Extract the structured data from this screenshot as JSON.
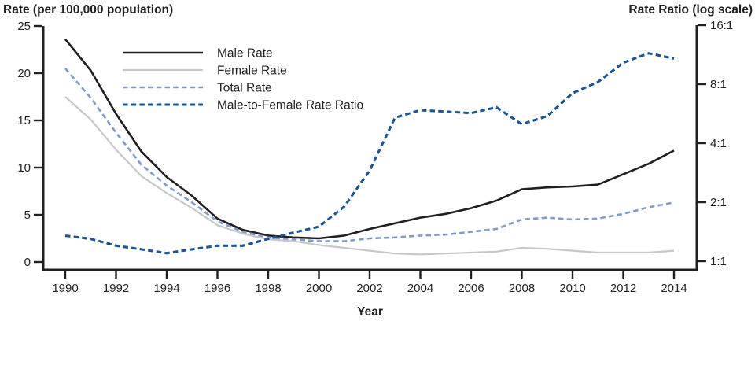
{
  "chart_data": {
    "type": "line",
    "title": "",
    "x_axis": {
      "title": "Year",
      "range": [
        1990,
        2014
      ],
      "ticks": [
        1990,
        1992,
        1994,
        1996,
        1998,
        2000,
        2002,
        2004,
        2006,
        2008,
        2010,
        2012,
        2014
      ]
    },
    "left_axis": {
      "title": "Rate (per 100,000 population)",
      "range": [
        0,
        25
      ],
      "ticks": [
        0,
        5,
        10,
        15,
        20,
        25
      ]
    },
    "right_axis": {
      "title": "Rate Ratio (log scale)",
      "scale": "log2",
      "range": [
        1,
        16
      ],
      "tick_values": [
        1,
        2,
        4,
        8,
        16
      ],
      "tick_labels": [
        "1:1",
        "2:1",
        "4:1",
        "8:1",
        "16:1"
      ]
    },
    "x": [
      1990,
      1991,
      1992,
      1993,
      1994,
      1995,
      1996,
      1997,
      1998,
      1999,
      2000,
      2001,
      2002,
      2003,
      2004,
      2005,
      2006,
      2007,
      2008,
      2009,
      2010,
      2011,
      2012,
      2013,
      2014
    ],
    "series": [
      {
        "name": "Male Rate",
        "axis": "left",
        "line_style": "solid",
        "color": "#231f20",
        "values": [
          23.6,
          20.3,
          15.7,
          11.7,
          9.0,
          7.0,
          4.6,
          3.4,
          2.8,
          2.6,
          2.5,
          2.8,
          3.5,
          4.1,
          4.7,
          5.1,
          5.7,
          6.5,
          7.7,
          7.9,
          8.0,
          8.2,
          9.3,
          10.4,
          11.8
        ]
      },
      {
        "name": "Female Rate",
        "axis": "left",
        "line_style": "solid",
        "color": "#c7c8ca",
        "values": [
          17.5,
          15.1,
          11.9,
          9.1,
          7.3,
          5.7,
          3.9,
          3.0,
          2.4,
          2.2,
          1.8,
          1.5,
          1.2,
          0.9,
          0.8,
          0.9,
          1.0,
          1.1,
          1.5,
          1.4,
          1.2,
          1.0,
          1.0,
          1.0,
          1.2
        ]
      },
      {
        "name": "Total Rate",
        "axis": "left",
        "line_style": "dashed",
        "color": "#7e9bce",
        "values": [
          20.5,
          17.4,
          13.7,
          10.3,
          8.1,
          6.3,
          4.3,
          3.2,
          2.6,
          2.4,
          2.2,
          2.2,
          2.5,
          2.6,
          2.8,
          2.9,
          3.2,
          3.5,
          4.5,
          4.7,
          4.5,
          4.6,
          5.1,
          5.8,
          6.3
        ]
      },
      {
        "name": "Male-to-Female Rate Ratio",
        "axis": "right",
        "line_style": "dashed",
        "color": "#1a549b",
        "values": [
          1.35,
          1.3,
          1.2,
          1.15,
          1.1,
          1.15,
          1.2,
          1.2,
          1.3,
          1.4,
          1.5,
          1.9,
          2.9,
          5.4,
          5.9,
          5.8,
          5.7,
          6.1,
          5.0,
          5.5,
          7.2,
          8.2,
          10.3,
          11.5,
          10.8
        ]
      }
    ],
    "legend": {
      "position": "inside-top-left"
    },
    "grid": "off"
  }
}
